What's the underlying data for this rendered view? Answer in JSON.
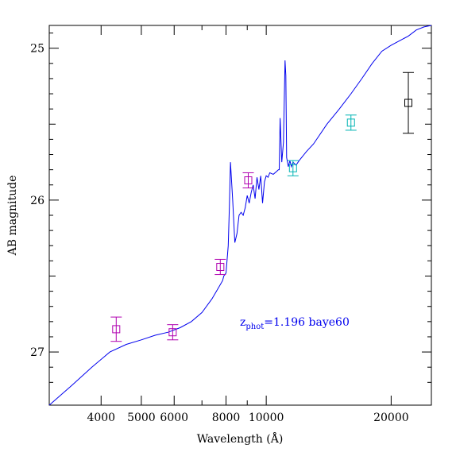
{
  "chart_data": {
    "type": "scatter",
    "title": "",
    "xlabel": "Wavelength (Å)",
    "ylabel": "AB magnitude",
    "x_scale": "log",
    "xlim": [
      3000,
      25000
    ],
    "ylim": [
      27.35,
      24.85
    ],
    "y_inverted": true,
    "grid": false,
    "x_tick_labels": [
      {
        "value": 4000,
        "label": "4000"
      },
      {
        "value": 5000,
        "label": "5000"
      },
      {
        "value": 6000,
        "label": "6000"
      },
      {
        "value": 8000,
        "label": "8000"
      },
      {
        "value": 10000,
        "label": "10000"
      },
      {
        "value": 20000,
        "label": "20000"
      }
    ],
    "y_tick_labels": [
      {
        "value": 25,
        "label": "25"
      },
      {
        "value": 26,
        "label": "26"
      },
      {
        "value": 27,
        "label": "27"
      }
    ],
    "annotation": {
      "prefix": "z",
      "subscript": "phot",
      "suffix": "=1.196 baye60"
    },
    "template_curve": {
      "color": "#0000ee",
      "x": [
        3000,
        3400,
        3800,
        4200,
        4600,
        5000,
        5400,
        5800,
        6200,
        6600,
        7000,
        7400,
        7700,
        7850,
        7900,
        8000,
        8100,
        8150,
        8200,
        8300,
        8400,
        8500,
        8600,
        8700,
        8800,
        8900,
        9000,
        9100,
        9200,
        9300,
        9400,
        9500,
        9600,
        9700,
        9800,
        9900,
        10000,
        10100,
        10200,
        10400,
        10600,
        10700,
        10750,
        10800,
        10900,
        11000,
        11100,
        11150,
        11200,
        11300,
        11400,
        11500,
        11600,
        11800,
        12000,
        12500,
        13000,
        14000,
        15000,
        16000,
        17000,
        18000,
        19000,
        20000,
        21000,
        22000,
        23000,
        24000,
        25000
      ],
      "y": [
        27.35,
        27.22,
        27.1,
        27.0,
        26.95,
        26.92,
        26.89,
        26.87,
        26.84,
        26.8,
        26.74,
        26.65,
        26.57,
        26.53,
        26.5,
        26.48,
        26.3,
        26.05,
        25.75,
        26.0,
        26.28,
        26.22,
        26.1,
        26.08,
        26.1,
        26.05,
        25.97,
        26.02,
        25.95,
        25.9,
        25.99,
        25.85,
        25.93,
        25.84,
        26.02,
        25.88,
        25.84,
        25.85,
        25.82,
        25.83,
        25.81,
        25.8,
        25.8,
        25.46,
        25.75,
        25.62,
        25.08,
        25.18,
        25.72,
        25.78,
        25.74,
        25.78,
        25.75,
        25.77,
        25.74,
        25.68,
        25.63,
        25.5,
        25.4,
        25.3,
        25.2,
        25.1,
        25.02,
        24.98,
        24.95,
        24.92,
        24.88,
        24.86,
        24.85
      ]
    },
    "photometry": [
      {
        "x": 4350,
        "y": 26.85,
        "err": 0.08,
        "color": "#b000b0"
      },
      {
        "x": 5950,
        "y": 26.87,
        "err": 0.05,
        "color": "#b000b0"
      },
      {
        "x": 7750,
        "y": 26.44,
        "err": 0.05,
        "color": "#b000b0"
      },
      {
        "x": 9050,
        "y": 25.87,
        "err": 0.05,
        "color": "#b000b0"
      },
      {
        "x": 11600,
        "y": 25.79,
        "err": 0.05,
        "color": "#00b4b4"
      },
      {
        "x": 16000,
        "y": 25.49,
        "err": 0.05,
        "color": "#00b4b4"
      },
      {
        "x": 22000,
        "y": 25.36,
        "err": 0.2,
        "color": "#000000"
      }
    ]
  }
}
